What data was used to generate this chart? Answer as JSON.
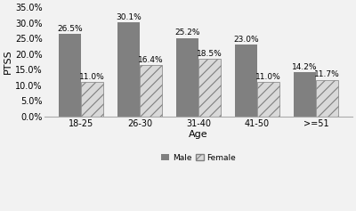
{
  "categories": [
    "18-25",
    "26-30",
    "31-40",
    "41-50",
    ">=51"
  ],
  "male_values": [
    26.5,
    30.1,
    25.2,
    23.0,
    14.2
  ],
  "female_values": [
    11.0,
    16.4,
    18.5,
    11.0,
    11.7
  ],
  "male_color": "#808080",
  "female_hatch": "///",
  "female_facecolor": "#d9d9d9",
  "female_edgecolor": "#7f7f7f",
  "xlabel": "Age",
  "ylabel": "PTSS",
  "ylim": [
    0,
    35
  ],
  "yticks": [
    0,
    5,
    10,
    15,
    20,
    25,
    30,
    35
  ],
  "ytick_labels": [
    "0.0%",
    "5.0%",
    "10.0%",
    "15.0%",
    "20.0%",
    "25.0%",
    "30.0%",
    "35.0%"
  ],
  "bar_width": 0.38,
  "label_fontsize": 6.5,
  "axis_fontsize": 8,
  "tick_fontsize": 7,
  "legend_male": "Male",
  "legend_female": "Female",
  "figure_facecolor": "#f2f2f2",
  "axes_facecolor": "#f2f2f2"
}
